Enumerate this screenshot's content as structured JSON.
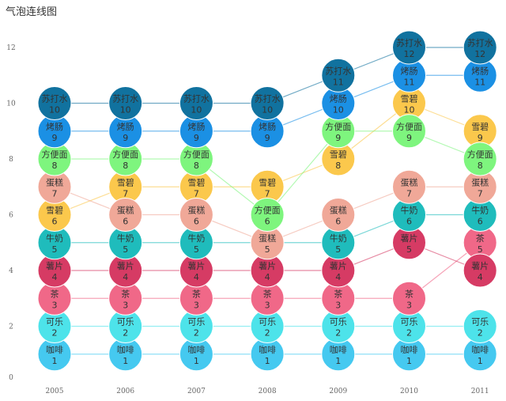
{
  "chart_data": {
    "type": "scatter",
    "title": "气泡连线图",
    "categories": [
      "2005",
      "2006",
      "2007",
      "2008",
      "2009",
      "2010",
      "2011"
    ],
    "yticks": [
      0,
      2,
      4,
      6,
      8,
      10,
      12
    ],
    "ylim": [
      0,
      13
    ],
    "grid": false,
    "series": [
      {
        "name": "咖啡",
        "color": "#45c9f0",
        "values": [
          1,
          1,
          1,
          1,
          1,
          1,
          1
        ]
      },
      {
        "name": "可乐",
        "color": "#4de3ea",
        "values": [
          2,
          2,
          2,
          2,
          2,
          2,
          2
        ]
      },
      {
        "name": "茶",
        "color": "#f06888",
        "values": [
          3,
          3,
          3,
          3,
          3,
          3,
          5
        ]
      },
      {
        "name": "薯片",
        "color": "#d63b64",
        "values": [
          4,
          4,
          4,
          4,
          4,
          5,
          4
        ]
      },
      {
        "name": "牛奶",
        "color": "#1fbcbc",
        "values": [
          5,
          5,
          5,
          null,
          5,
          6,
          6
        ]
      },
      {
        "name": "雪碧",
        "color": "#fbc84c",
        "values": [
          6,
          7,
          7,
          7,
          8,
          10,
          9
        ]
      },
      {
        "name": "蛋糕",
        "color": "#f0a898",
        "values": [
          7,
          6,
          6,
          5,
          6,
          7,
          7
        ]
      },
      {
        "name": "方便面",
        "color": "#7ef57e",
        "values": [
          8,
          8,
          8,
          6,
          9,
          9,
          8
        ]
      },
      {
        "name": "烤肠",
        "color": "#1b90e4",
        "values": [
          9,
          9,
          9,
          9,
          10,
          11,
          11
        ]
      },
      {
        "name": "苏打水",
        "color": "#11729f",
        "values": [
          10,
          10,
          10,
          10,
          11,
          12,
          12
        ]
      }
    ]
  }
}
